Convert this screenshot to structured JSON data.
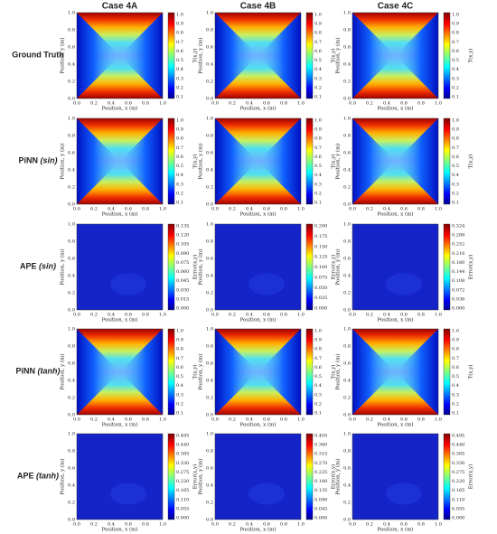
{
  "columns": [
    "Case 4A",
    "Case 4B",
    "Case 4C"
  ],
  "rows": [
    {
      "name": "Ground Truth"
    },
    {
      "name": "PiNN",
      "variant": "(sin)"
    },
    {
      "name": "APE",
      "variant": "(sin)"
    },
    {
      "name": "PiNN",
      "variant": "(tanh)"
    },
    {
      "name": "APE",
      "variant": "(tanh)"
    }
  ],
  "x_label": "Position, x (m)",
  "y_label": "Position, y (m)",
  "axis_ticks": [
    "0.0",
    "0.2",
    "0.4",
    "0.6",
    "0.8",
    "1.0"
  ],
  "panels": [
    [
      {
        "colorbar_label": "T(x,y)",
        "colorbar_ticks": [
          "1.0",
          "0.9",
          "0.8",
          "0.7",
          "0.6",
          "0.5",
          "0.4",
          "0.3",
          "0.2",
          "0.1"
        ]
      },
      {
        "colorbar_label": "T(x,y)",
        "colorbar_ticks": [
          "1.0",
          "0.9",
          "0.8",
          "0.7",
          "0.6",
          "0.5",
          "0.4",
          "0.3",
          "0.2",
          "0.1"
        ]
      },
      {
        "colorbar_label": "T(x,y)",
        "colorbar_ticks": [
          "1.0",
          "0.9",
          "0.8",
          "0.7",
          "0.6",
          "0.5",
          "0.4",
          "0.3",
          "0.2",
          "0.1"
        ]
      }
    ],
    [
      {
        "colorbar_label": "T(x,y)",
        "colorbar_ticks": [
          "1.0",
          "0.9",
          "0.8",
          "0.7",
          "0.6",
          "0.5",
          "0.4",
          "0.3",
          "0.2",
          "0.1"
        ]
      },
      {
        "colorbar_label": "T(x,y)",
        "colorbar_ticks": [
          "1.0",
          "0.9",
          "0.8",
          "0.7",
          "0.6",
          "0.5",
          "0.4",
          "0.3",
          "0.2",
          "0.1"
        ]
      },
      {
        "colorbar_label": "T(x,y)",
        "colorbar_ticks": [
          "1.0",
          "0.9",
          "0.8",
          "0.7",
          "0.6",
          "0.5",
          "0.4",
          "0.3",
          "0.2",
          "0.1"
        ]
      }
    ],
    [
      {
        "colorbar_label": "Error(x,y)",
        "colorbar_ticks": [
          "0.135",
          "0.120",
          "0.105",
          "0.090",
          "0.075",
          "0.060",
          "0.045",
          "0.030",
          "0.015",
          "0.000"
        ]
      },
      {
        "colorbar_label": "Error(x,y)",
        "colorbar_ticks": [
          "0.200",
          "0.175",
          "0.150",
          "0.125",
          "0.100",
          "0.075",
          "0.050",
          "0.025",
          "0.000"
        ]
      },
      {
        "colorbar_label": "Error(x,y)",
        "colorbar_ticks": [
          "0.324",
          "0.288",
          "0.252",
          "0.216",
          "0.180",
          "0.144",
          "0.108",
          "0.072",
          "0.036",
          "0.000"
        ]
      }
    ],
    [
      {
        "colorbar_label": "T(x,y)",
        "colorbar_ticks": [
          "1.0",
          "0.9",
          "0.8",
          "0.7",
          "0.6",
          "0.5",
          "0.4",
          "0.3",
          "0.2",
          "0.1"
        ]
      },
      {
        "colorbar_label": "T(x,y)",
        "colorbar_ticks": [
          "1.0",
          "0.9",
          "0.8",
          "0.7",
          "0.6",
          "0.5",
          "0.4",
          "0.3",
          "0.2",
          "0.1"
        ]
      },
      {
        "colorbar_label": "T(x,y)",
        "colorbar_ticks": [
          "1.0",
          "0.9",
          "0.8",
          "0.7",
          "0.6",
          "0.5",
          "0.4",
          "0.3",
          "0.2",
          "0.1"
        ]
      }
    ],
    [
      {
        "colorbar_label": "Error(x,y)",
        "colorbar_ticks": [
          "0.495",
          "0.440",
          "0.385",
          "0.330",
          "0.275",
          "0.220",
          "0.165",
          "0.110",
          "0.055",
          "0.000"
        ]
      },
      {
        "colorbar_label": "Error(x,y)",
        "colorbar_ticks": [
          "0.405",
          "0.360",
          "0.315",
          "0.270",
          "0.225",
          "0.180",
          "0.135",
          "0.090",
          "0.045",
          "0.000"
        ]
      },
      {
        "colorbar_label": "Error(x,y)",
        "colorbar_ticks": [
          "0.495",
          "0.440",
          "0.385",
          "0.330",
          "0.275",
          "0.220",
          "0.165",
          "0.110",
          "0.055",
          "0.000"
        ]
      }
    ]
  ]
}
